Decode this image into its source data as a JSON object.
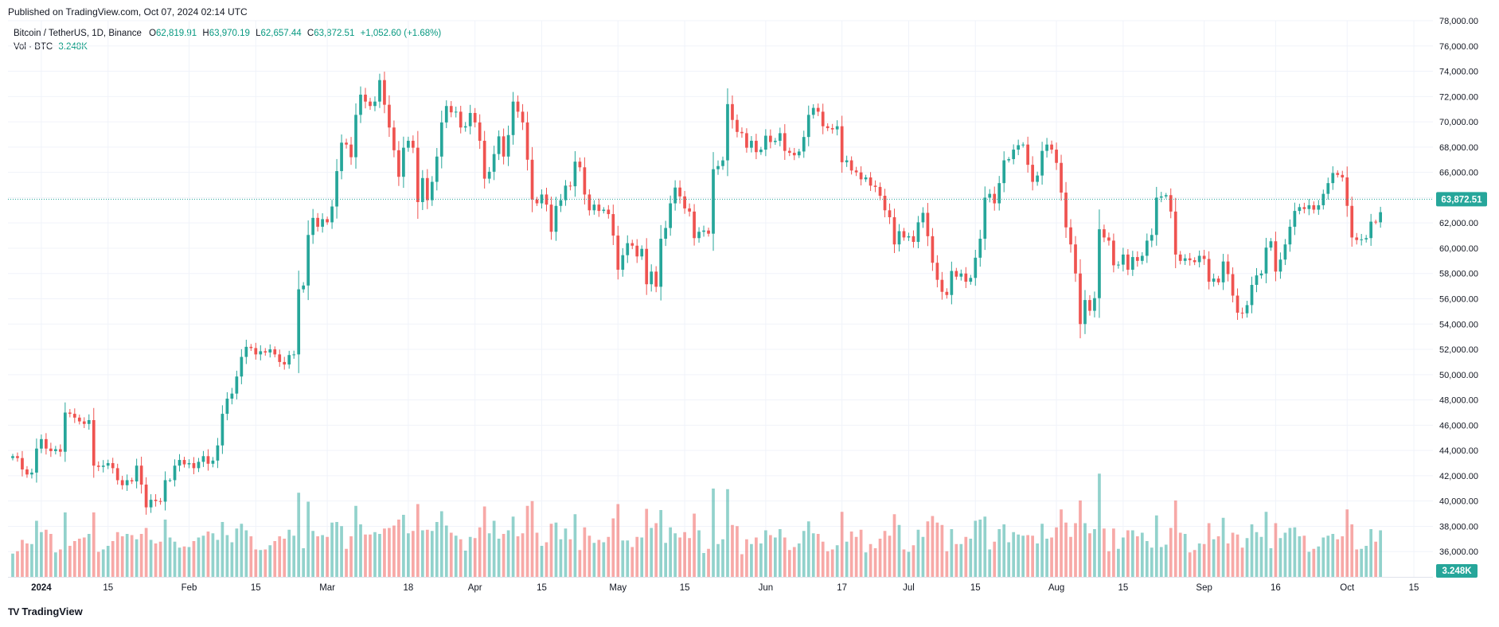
{
  "header": {
    "published": "Published on TradingView.com, Oct 07, 2024 02:14 UTC"
  },
  "legend": {
    "symbol": "Bitcoin / TetherUS, 1D, Binance",
    "o_label": "O",
    "o": "62,819.91",
    "h_label": "H",
    "h": "63,970.19",
    "l_label": "L",
    "l": "62,657.44",
    "c_label": "C",
    "c": "63,872.51",
    "change": "+1,052.60 (+1.68%)",
    "vol_label": "Vol · BTC",
    "vol": "3.248K"
  },
  "brand": {
    "name": "TradingView",
    "logo": "TV"
  },
  "colors": {
    "up": "#26a69a",
    "down": "#ef5350",
    "up_text": "#089981",
    "grid": "#f0f3fa"
  },
  "chart_data": {
    "type": "candlestick",
    "title": "Bitcoin / TetherUS, 1D, Binance",
    "x_range": [
      "2023-12-25",
      "2024-10-19"
    ],
    "ylim": [
      34000,
      78000
    ],
    "price_ticks": [
      36000,
      38000,
      40000,
      42000,
      44000,
      46000,
      48000,
      50000,
      52000,
      54000,
      56000,
      58000,
      60000,
      62000,
      64000,
      66000,
      68000,
      70000,
      72000,
      74000,
      76000,
      78000
    ],
    "price_tick_labels": [
      "36,000.00",
      "38,000.00",
      "40,000.00",
      "42,000.00",
      "44,000.00",
      "46,000.00",
      "48,000.00",
      "50,000.00",
      "52,000.00",
      "54,000.00",
      "56,000.00",
      "58,000.00",
      "60,000.00",
      "62,000.00",
      "64,000.00",
      "66,000.00",
      "68,000.00",
      "70,000.00",
      "72,000.00",
      "74,000.00",
      "76,000.00",
      "78,000.00"
    ],
    "x_ticks": [
      {
        "date": "2024-01-01",
        "label": "2024",
        "bold": true
      },
      {
        "date": "2024-01-15",
        "label": "15"
      },
      {
        "date": "2024-02-01",
        "label": "Feb"
      },
      {
        "date": "2024-02-15",
        "label": "15"
      },
      {
        "date": "2024-03-01",
        "label": "Mar"
      },
      {
        "date": "2024-03-18",
        "label": "18"
      },
      {
        "date": "2024-04-01",
        "label": "Apr"
      },
      {
        "date": "2024-04-15",
        "label": "15"
      },
      {
        "date": "2024-05-01",
        "label": "May"
      },
      {
        "date": "2024-05-15",
        "label": "15"
      },
      {
        "date": "2024-06-01",
        "label": "Jun"
      },
      {
        "date": "2024-06-17",
        "label": "17"
      },
      {
        "date": "2024-07-01",
        "label": "Jul"
      },
      {
        "date": "2024-07-15",
        "label": "15"
      },
      {
        "date": "2024-08-01",
        "label": "Aug"
      },
      {
        "date": "2024-08-15",
        "label": "15"
      },
      {
        "date": "2024-09-01",
        "label": "Sep"
      },
      {
        "date": "2024-09-16",
        "label": "16"
      },
      {
        "date": "2024-10-01",
        "label": "Oct"
      },
      {
        "date": "2024-10-15",
        "label": "15"
      }
    ],
    "last_price": 63872.51,
    "last_price_label": "63,872.51",
    "last_volume_label": "3.248K",
    "volume_max": 120,
    "first_date": "2023-12-26",
    "closes": [
      43550,
      43400,
      42500,
      42100,
      42250,
      44150,
      44900,
      44150,
      43950,
      44100,
      43900,
      47000,
      46900,
      46600,
      46300,
      46100,
      46400,
      42800,
      42700,
      42800,
      43000,
      42600,
      41650,
      41250,
      41650,
      41550,
      42800,
      41300,
      39500,
      40100,
      40000,
      39950,
      41650,
      41650,
      42800,
      43250,
      42900,
      43000,
      42600,
      43100,
      43550,
      42950,
      43200,
      44400,
      46900,
      48100,
      48500,
      49850,
      51400,
      52200,
      52100,
      51600,
      51850,
      51750,
      52000,
      51600,
      51000,
      50800,
      51550,
      51600,
      56750,
      57050,
      61050,
      62400,
      61700,
      62300,
      62050,
      63300,
      66100,
      68350,
      68200,
      67200,
      70550,
      72150,
      71600,
      71250,
      71600,
      73300,
      71350,
      69550,
      67750,
      65650,
      67950,
      68500,
      67950,
      63650,
      65550,
      63800,
      65250,
      67250,
      69950,
      71250,
      70750,
      70800,
      69550,
      69650,
      70700,
      69950,
      68500,
      65500,
      66050,
      67450,
      68850,
      67250,
      68950,
      71600,
      70800,
      69950,
      67000,
      63850,
      63550,
      64250,
      63450,
      61300,
      63350,
      63800,
      64950,
      64900,
      66850,
      66400,
      64250,
      63000,
      63450,
      62950,
      63050,
      62700,
      61000,
      58300,
      59450,
      60400,
      60200,
      59350,
      59950,
      57150,
      58150,
      56950,
      60750,
      61600,
      63550,
      64800,
      64100,
      63150,
      62900,
      60800,
      61300,
      61400,
      61150,
      66250,
      66500,
      66950,
      71400,
      70150,
      69200,
      69100,
      67950,
      68500,
      67600,
      67800,
      68900,
      68400,
      68500,
      69100,
      67700,
      67550,
      67350,
      67650,
      68800,
      70550,
      71100,
      70800,
      69650,
      69500,
      69400,
      69650,
      66800,
      66950,
      66150,
      66000,
      65450,
      65600,
      64950,
      64850,
      64150,
      63000,
      62450,
      60300,
      61350,
      60850,
      60950,
      60500,
      62050,
      62800,
      60950,
      58850,
      57500,
      56550,
      56300,
      58200,
      57750,
      58000,
      57350,
      57650,
      59250,
      60750,
      64000,
      64300,
      63550,
      65150,
      66950,
      67050,
      67800,
      68150,
      68200,
      66600,
      65250,
      65750,
      67700,
      68200,
      67800,
      66750,
      64400,
      61650,
      60300,
      58000,
      54000,
      55900,
      55050,
      56050,
      61500,
      60850,
      60600,
      58650,
      58700,
      59500,
      58300,
      59300,
      59000,
      59400,
      60600,
      61050,
      64000,
      64100,
      64200,
      62900,
      59500,
      59000,
      59200,
      59050,
      58900,
      59400,
      59150,
      57350,
      57600,
      57300,
      58950,
      57950,
      56250,
      54900,
      54850,
      55500,
      57100,
      57850,
      58000,
      60050,
      60550,
      58150,
      59100,
      60300,
      61700,
      62950,
      63250,
      63100,
      63400,
      63050,
      63400,
      64300,
      65150,
      65950,
      65800,
      65600,
      63350,
      60850,
      60650,
      60700,
      60800,
      62100,
      62050,
      62850
    ]
  }
}
